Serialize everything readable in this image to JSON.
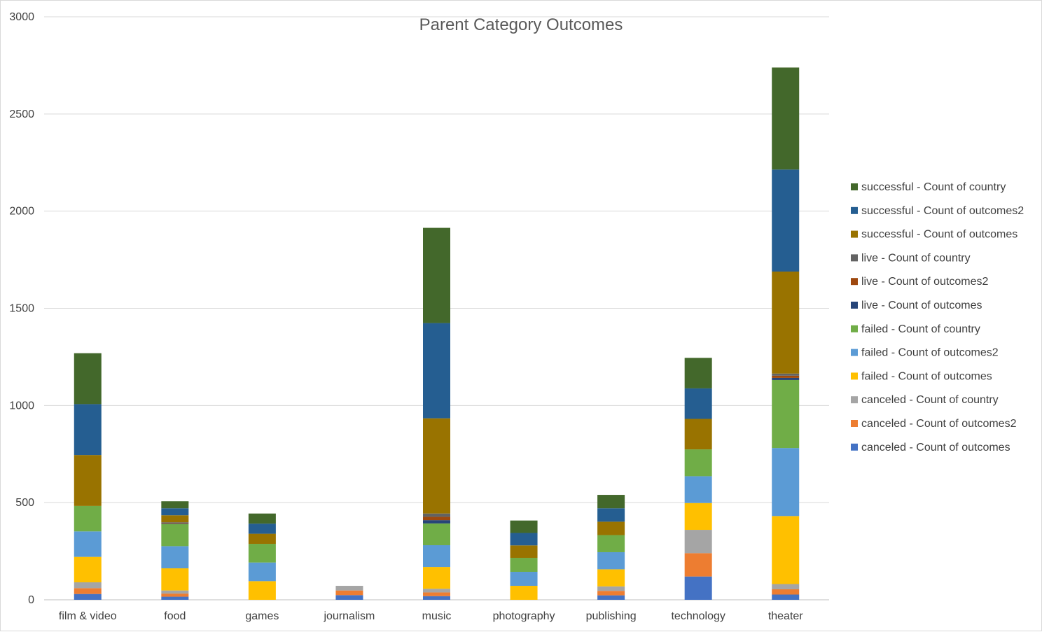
{
  "chart_data": {
    "type": "bar",
    "stacked": true,
    "title": "Parent Category Outcomes",
    "xlabel": "",
    "ylabel": "",
    "ylim": [
      0,
      3000
    ],
    "yticks": [
      0,
      500,
      1000,
      1500,
      2000,
      2500,
      3000
    ],
    "grid": true,
    "legend_position": "right",
    "categories": [
      "film & video",
      "food",
      "games",
      "journalism",
      "music",
      "photography",
      "publishing",
      "technology",
      "theater"
    ],
    "series": [
      {
        "name": "canceled - Count of outcomes",
        "color": "#4472C4",
        "values": [
          30,
          16,
          0,
          24,
          19,
          0,
          23,
          120,
          27
        ]
      },
      {
        "name": "canceled - Count of outcomes2",
        "color": "#ED7D31",
        "values": [
          30,
          16,
          0,
          24,
          19,
          0,
          23,
          120,
          27
        ]
      },
      {
        "name": "canceled - Count of country",
        "color": "#A5A5A5",
        "values": [
          30,
          16,
          0,
          24,
          19,
          0,
          23,
          120,
          27
        ]
      },
      {
        "name": "failed - Count of outcomes",
        "color": "#FFC000",
        "values": [
          131,
          114,
          96,
          0,
          112,
          72,
          88,
          138,
          350
        ]
      },
      {
        "name": "failed - Count of outcomes2",
        "color": "#5B9BD5",
        "values": [
          131,
          114,
          96,
          0,
          112,
          72,
          88,
          138,
          350
        ]
      },
      {
        "name": "failed - Count of country",
        "color": "#70AD47",
        "values": [
          131,
          114,
          96,
          0,
          112,
          72,
          88,
          138,
          350
        ]
      },
      {
        "name": "live - Count of outcomes",
        "color": "#264478",
        "values": [
          0,
          3,
          0,
          0,
          17,
          0,
          0,
          0,
          11
        ]
      },
      {
        "name": "live - Count of outcomes2",
        "color": "#9E480E",
        "values": [
          0,
          3,
          0,
          0,
          17,
          0,
          0,
          0,
          11
        ]
      },
      {
        "name": "live - Count of country",
        "color": "#636363",
        "values": [
          0,
          3,
          0,
          0,
          17,
          0,
          0,
          0,
          11
        ]
      },
      {
        "name": "successful - Count of outcomes",
        "color": "#997300",
        "values": [
          262,
          36,
          52,
          0,
          490,
          64,
          69,
          157,
          525
        ]
      },
      {
        "name": "successful - Count of outcomes2",
        "color": "#255E91",
        "values": [
          262,
          36,
          52,
          0,
          490,
          64,
          69,
          157,
          525
        ]
      },
      {
        "name": "successful - Count of country",
        "color": "#43682B",
        "values": [
          262,
          36,
          52,
          0,
          490,
          64,
          69,
          157,
          525
        ]
      }
    ]
  }
}
